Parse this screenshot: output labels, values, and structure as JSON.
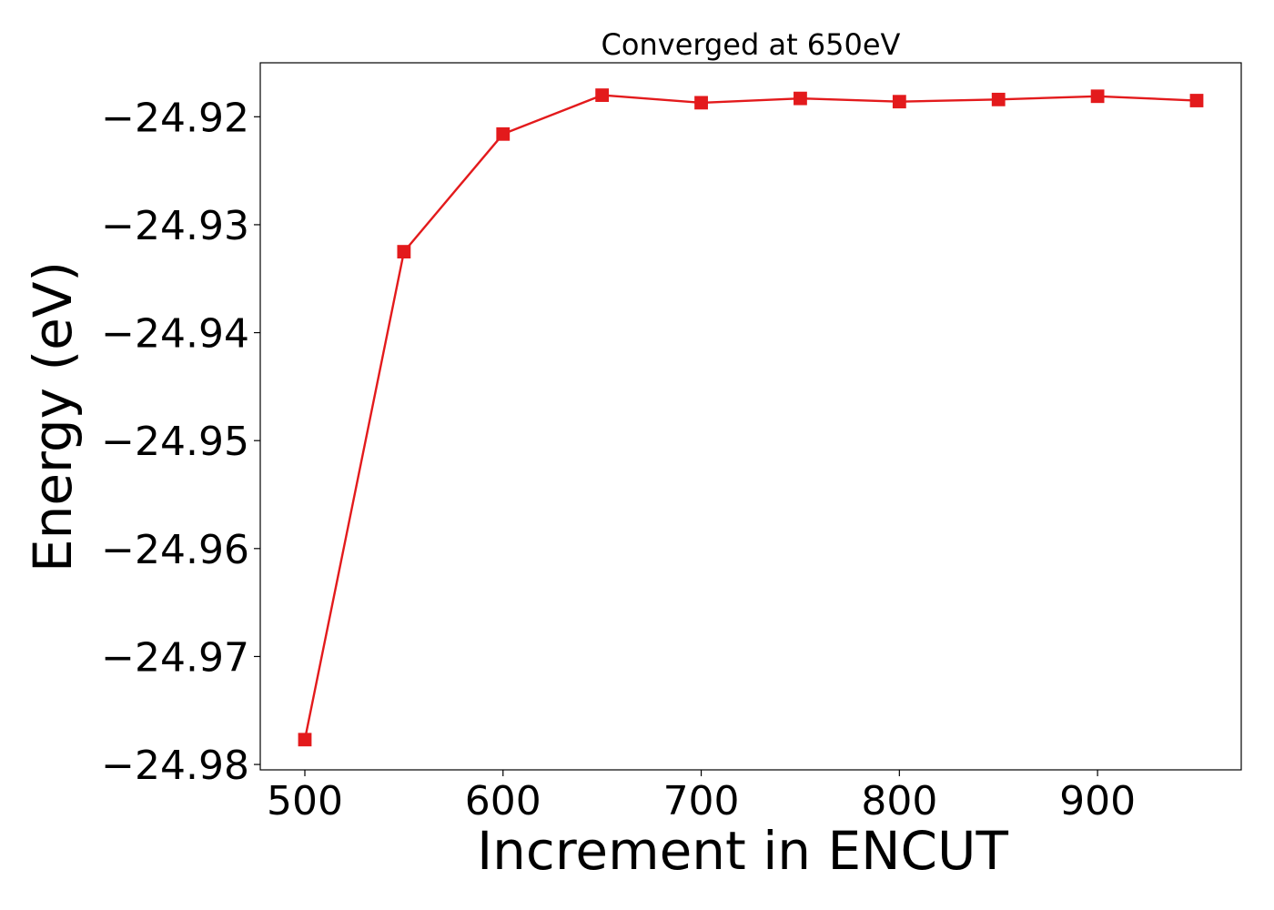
{
  "chart_data": {
    "type": "line",
    "title": "Converged at 650eV",
    "xlabel": "Increment in ENCUT",
    "ylabel": "Energy (eV)",
    "x": [
      500,
      550,
      600,
      650,
      700,
      750,
      800,
      850,
      900,
      950
    ],
    "series": [
      {
        "values": [
          -24.9777,
          -24.9325,
          -24.9216,
          -24.918,
          -24.9187,
          -24.9183,
          -24.9186,
          -24.9184,
          -24.9181,
          -24.9185
        ],
        "color": "#e31a1c",
        "marker": "square"
      }
    ],
    "xticks": [
      500,
      600,
      700,
      800,
      900
    ],
    "xtick_labels": [
      "500",
      "600",
      "700",
      "800",
      "900"
    ],
    "yticks": [
      -24.98,
      -24.97,
      -24.96,
      -24.95,
      -24.94,
      -24.93,
      -24.92
    ],
    "ytick_labels": [
      "−24.98",
      "−24.97",
      "−24.96",
      "−24.95",
      "−24.94",
      "−24.93",
      "−24.92"
    ],
    "xlim": [
      477.5,
      972.5
    ],
    "ylim": [
      -24.9805,
      -24.915
    ],
    "grid": false,
    "legend": "none"
  }
}
